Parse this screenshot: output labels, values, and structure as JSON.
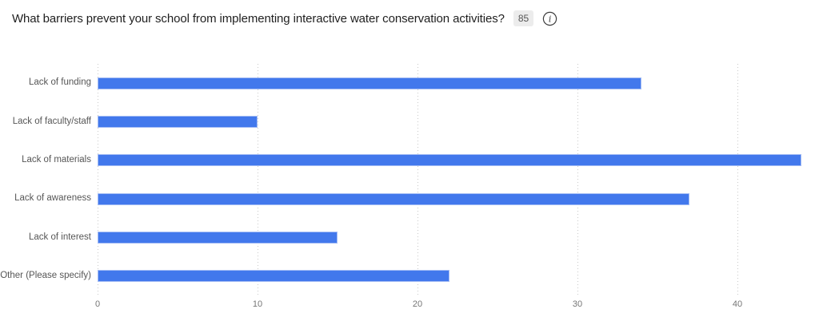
{
  "header": {
    "title": "What barriers prevent your school from implementing interactive water conservation activities?",
    "response_count": "85",
    "info_icon": "info-circle-icon"
  },
  "colors": {
    "title_text": "#1f1f1f",
    "badge_bg": "#ececec",
    "badge_text": "#555555",
    "icon_stroke": "#3d3d3d",
    "bar": "#4278ec",
    "bar_border": "#a4bcf4",
    "gridline": "#c9c9c9",
    "axis_label": "#757575",
    "category_label": "#565656"
  },
  "chart_data": {
    "type": "bar",
    "orientation": "horizontal",
    "title": "What barriers prevent your school from implementing interactive water conservation activities?",
    "categories": [
      "Lack of funding",
      "Lack of faculty/staff",
      "Lack of materials",
      "Lack of awareness",
      "Lack of interest",
      "Other (Please specify)"
    ],
    "values": [
      34,
      10,
      44,
      37,
      15,
      22
    ],
    "x_ticks": [
      0,
      10,
      20,
      30,
      40
    ],
    "xlim": [
      0,
      44
    ],
    "xlabel": "",
    "ylabel": "",
    "grid": "vertical-dotted",
    "legend": "none"
  }
}
